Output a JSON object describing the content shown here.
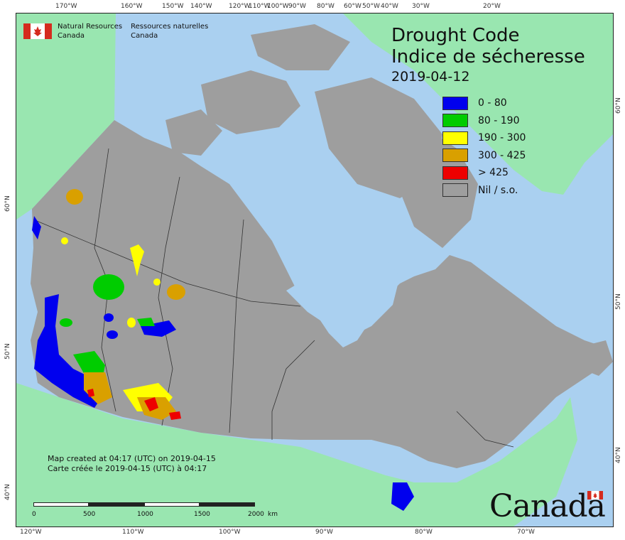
{
  "title": {
    "en": "Drought Code",
    "fr": "Indice de sécheresse",
    "date": "2019-04-12"
  },
  "agency": {
    "en_line1": "Natural Resources",
    "en_line2": "Canada",
    "fr_line1": "Ressources naturelles",
    "fr_line2": "Canada"
  },
  "legend": [
    {
      "label": "0 - 80",
      "color": "#0000ee"
    },
    {
      "label": "80 - 190",
      "color": "#00cc00"
    },
    {
      "label": "190 - 300",
      "color": "#ffff00"
    },
    {
      "label": "300 - 425",
      "color": "#d9a000"
    },
    {
      "label": "> 425",
      "color": "#ee0000"
    },
    {
      "label": "Nil / s.o.",
      "color": "#9e9e9e"
    }
  ],
  "credits": {
    "line1": "Map created at 04:17 (UTC) on 2019-04-15",
    "line2": "Carte créée le 2019-04-15 (UTC) à 04:17"
  },
  "scale": {
    "labels": [
      "0",
      "500",
      "1000",
      "1500",
      "2000"
    ],
    "unit": "km"
  },
  "graticule": {
    "top_lon": [
      "170°W",
      "160°W",
      "150°W",
      "140°W",
      "120°W",
      "110°W",
      "100°W",
      "90°W",
      "80°W",
      "60°W",
      "50°W",
      "40°W",
      "30°W",
      "20°W"
    ],
    "bottom_lon": [
      "120°W",
      "110°W",
      "100°W",
      "90°W",
      "80°W",
      "70°W"
    ],
    "left_lat": [
      "60°N",
      "50°N",
      "40°N"
    ],
    "right_lat": [
      "60°N",
      "50°N",
      "40°N"
    ]
  },
  "wordmark": "Canada",
  "colors": {
    "ocean": "#aad0f0",
    "foreign_land": "#99e6b0",
    "canada_nil": "#9e9e9e",
    "boundary": "#333333"
  }
}
